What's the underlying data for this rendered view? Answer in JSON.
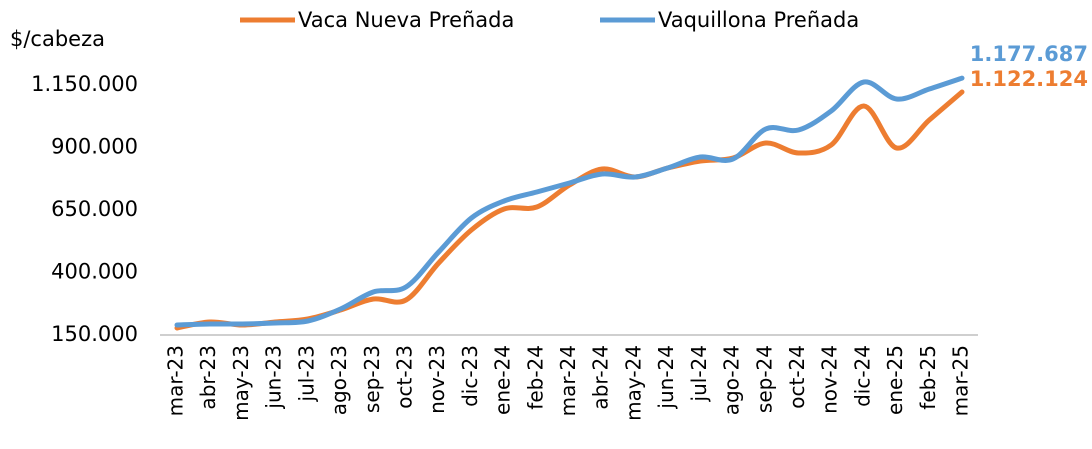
{
  "chart_data": {
    "type": "line",
    "y_label": "$/cabeza",
    "categories": [
      "mar-23",
      "abr-23",
      "may-23",
      "jun-23",
      "jul-23",
      "ago-23",
      "sep-23",
      "oct-23",
      "nov-23",
      "dic-23",
      "ene-24",
      "feb-24",
      "mar-24",
      "abr-24",
      "may-24",
      "jun-24",
      "jul-24",
      "ago-24",
      "sep-24",
      "oct-24",
      "nov-24",
      "dic-24",
      "ene-25",
      "feb-25",
      "mar-25"
    ],
    "series": [
      {
        "name": "Vaca Nueva Preñada",
        "color": "#ed7d31",
        "values": [
          178000,
          202000,
          190000,
          202000,
          214000,
          250000,
          294000,
          290000,
          438000,
          570000,
          654000,
          662000,
          750000,
          814000,
          782000,
          818000,
          846000,
          858000,
          918000,
          878000,
          910000,
          1066000,
          898000,
          1010000,
          1122124
        ],
        "value_labels": [
          null,
          null,
          null,
          null,
          null,
          null,
          null,
          null,
          null,
          null,
          null,
          null,
          null,
          null,
          null,
          null,
          null,
          null,
          null,
          null,
          null,
          null,
          null,
          null,
          "1.122.124"
        ]
      },
      {
        "name": "Vaquillona Preñada",
        "color": "#5b9bd5",
        "values": [
          190000,
          194000,
          194000,
          198000,
          206000,
          254000,
          322000,
          342000,
          482000,
          618000,
          686000,
          722000,
          758000,
          794000,
          782000,
          818000,
          862000,
          854000,
          974000,
          970000,
          1046000,
          1162000,
          1094000,
          1134000,
          1177687
        ],
        "value_labels": [
          null,
          null,
          null,
          null,
          null,
          null,
          null,
          null,
          null,
          null,
          null,
          null,
          null,
          null,
          null,
          null,
          null,
          null,
          null,
          null,
          null,
          null,
          null,
          null,
          "1.177.687"
        ]
      }
    ],
    "ylim": [
      150000,
      1250000
    ],
    "yticks": [
      {
        "value": 150000,
        "label": "150.000"
      },
      {
        "value": 400000,
        "label": "400.000"
      },
      {
        "value": 650000,
        "label": "650.000"
      },
      {
        "value": 900000,
        "label": "900.000"
      },
      {
        "value": 1150000,
        "label": "1.150.000"
      }
    ],
    "grid": false,
    "legend": "top"
  }
}
